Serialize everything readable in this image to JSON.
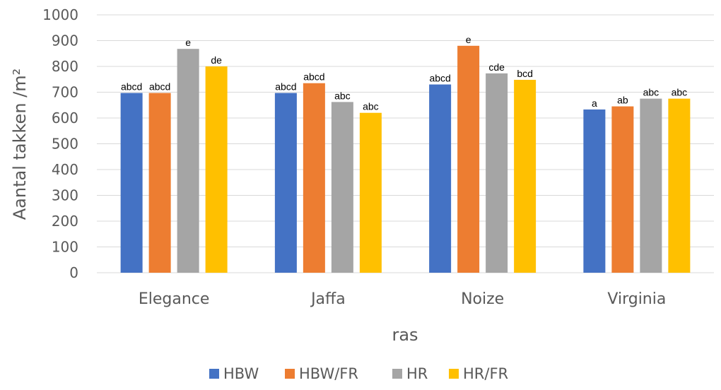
{
  "chart_data": {
    "type": "bar",
    "title": "",
    "xlabel": "ras",
    "ylabel": "Aantal takken /m²",
    "ylim": [
      0,
      1000
    ],
    "yticks": [
      0,
      100,
      200,
      300,
      400,
      500,
      600,
      700,
      800,
      900,
      1000
    ],
    "grid": true,
    "legend_position": "bottom",
    "categories": [
      "Elegance",
      "Jaffa",
      "Noize",
      "Virginia"
    ],
    "series": [
      {
        "name": "HBW",
        "color": "#4472C4",
        "values": [
          697,
          697,
          730,
          633
        ],
        "labels": [
          "abcd",
          "abcd",
          "abcd",
          "a"
        ]
      },
      {
        "name": "HBW/FR",
        "color": "#ED7D31",
        "values": [
          697,
          735,
          880,
          645
        ],
        "labels": [
          "abcd",
          "abcd",
          "e",
          "ab"
        ]
      },
      {
        "name": "HR",
        "color": "#A5A5A5",
        "values": [
          868,
          662,
          773,
          675
        ],
        "labels": [
          "e",
          "abc",
          "cde",
          "abc"
        ]
      },
      {
        "name": "HR/FR",
        "color": "#FFC000",
        "values": [
          800,
          620,
          748,
          675
        ],
        "labels": [
          "de",
          "abc",
          "bcd",
          "abc"
        ]
      }
    ]
  }
}
